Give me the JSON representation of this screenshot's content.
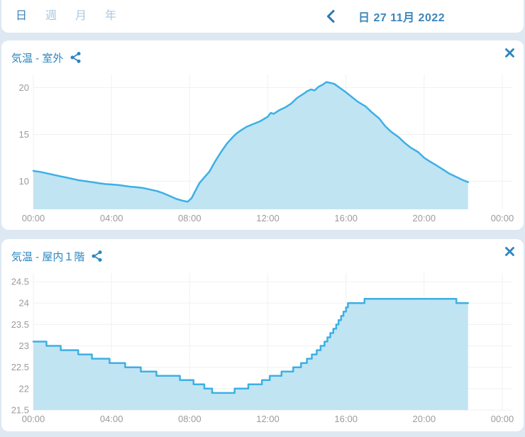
{
  "colors": {
    "page_background": "#dde8f2",
    "card_background": "#ffffff",
    "accent_blue": "#2b86c0",
    "tab_selected": "#3b82b9",
    "tab_unselected": "#a9c8e1",
    "chart_line": "#3cb0e5",
    "chart_fill": "#c1e4f3",
    "gridline": "#f0f0f0",
    "tick_label": "#9b9b9b"
  },
  "topbar": {
    "tabs": [
      {
        "label": "日",
        "selected": true
      },
      {
        "label": "週",
        "selected": false
      },
      {
        "label": "月",
        "selected": false
      },
      {
        "label": "年",
        "selected": false
      }
    ],
    "back_icon": "chevron-left-icon",
    "date_label": "日 27 11月 2022"
  },
  "cards": [
    {
      "title": "気温 - 室外",
      "share_icon": "share-icon",
      "close_icon": "close-icon"
    },
    {
      "title": "気温 - 屋内１階",
      "share_icon": "share-icon",
      "close_icon": "close-icon"
    }
  ],
  "chart_data": [
    {
      "type": "area",
      "title": "気温 - 室外",
      "step": false,
      "x_ticks": [
        "00:00",
        "04:00",
        "08:00",
        "12:00",
        "16:00",
        "20:00",
        "00:00"
      ],
      "y_ticks": [
        10,
        15,
        20
      ],
      "xlim": [
        0,
        24
      ],
      "ylim": [
        7.0,
        21.4
      ],
      "grid": true,
      "line_color": "#3cb0e5",
      "fill_color": "#c1e4f3",
      "points": [
        [
          0,
          11.1
        ],
        [
          0.33,
          11.0
        ],
        [
          0.67,
          10.85
        ],
        [
          1,
          10.7
        ],
        [
          1.33,
          10.55
        ],
        [
          1.67,
          10.4
        ],
        [
          2,
          10.25
        ],
        [
          2.33,
          10.1
        ],
        [
          2.67,
          10.0
        ],
        [
          3,
          9.9
        ],
        [
          3.33,
          9.8
        ],
        [
          3.67,
          9.7
        ],
        [
          4,
          9.65
        ],
        [
          4.33,
          9.6
        ],
        [
          4.67,
          9.5
        ],
        [
          5,
          9.4
        ],
        [
          5.33,
          9.35
        ],
        [
          5.67,
          9.25
        ],
        [
          6,
          9.1
        ],
        [
          6.33,
          8.95
        ],
        [
          6.67,
          8.7
        ],
        [
          7,
          8.4
        ],
        [
          7.33,
          8.1
        ],
        [
          7.67,
          7.9
        ],
        [
          7.9,
          7.8
        ],
        [
          8.1,
          8.2
        ],
        [
          8.3,
          9.0
        ],
        [
          8.5,
          9.8
        ],
        [
          8.75,
          10.4
        ],
        [
          9,
          11.0
        ],
        [
          9.3,
          12.1
        ],
        [
          9.6,
          13.1
        ],
        [
          9.9,
          14.0
        ],
        [
          10.2,
          14.7
        ],
        [
          10.4,
          15.1
        ],
        [
          10.6,
          15.4
        ],
        [
          10.9,
          15.8
        ],
        [
          11.25,
          16.1
        ],
        [
          11.6,
          16.4
        ],
        [
          12,
          16.9
        ],
        [
          12.15,
          17.3
        ],
        [
          12.3,
          17.2
        ],
        [
          12.6,
          17.6
        ],
        [
          12.9,
          17.9
        ],
        [
          13.2,
          18.3
        ],
        [
          13.5,
          18.9
        ],
        [
          13.8,
          19.3
        ],
        [
          14,
          19.6
        ],
        [
          14.2,
          19.8
        ],
        [
          14.4,
          19.7
        ],
        [
          14.6,
          20.1
        ],
        [
          14.8,
          20.3
        ],
        [
          15,
          20.6
        ],
        [
          15.2,
          20.5
        ],
        [
          15.4,
          20.4
        ],
        [
          15.6,
          20.1
        ],
        [
          15.8,
          19.8
        ],
        [
          16,
          19.5
        ],
        [
          16.3,
          19.0
        ],
        [
          16.6,
          18.5
        ],
        [
          17,
          18.0
        ],
        [
          17.3,
          17.4
        ],
        [
          17.7,
          16.7
        ],
        [
          18,
          15.9
        ],
        [
          18.3,
          15.3
        ],
        [
          18.7,
          14.7
        ],
        [
          19,
          14.1
        ],
        [
          19.3,
          13.6
        ],
        [
          19.7,
          13.1
        ],
        [
          20,
          12.5
        ],
        [
          20.3,
          12.1
        ],
        [
          20.7,
          11.6
        ],
        [
          21,
          11.2
        ],
        [
          21.3,
          10.8
        ],
        [
          21.7,
          10.4
        ],
        [
          22,
          10.1
        ],
        [
          22.25,
          9.9
        ]
      ]
    },
    {
      "type": "area",
      "title": "気温 - 屋内１階",
      "step": true,
      "x_ticks": [
        "00:00",
        "04:00",
        "08:00",
        "12:00",
        "16:00",
        "20:00",
        "00:00"
      ],
      "y_ticks": [
        21.5,
        22,
        22.5,
        23,
        23.5,
        24,
        24.5
      ],
      "xlim": [
        0,
        24
      ],
      "ylim": [
        21.5,
        24.7
      ],
      "grid": true,
      "line_color": "#3cb0e5",
      "fill_color": "#c1e4f3",
      "points": [
        [
          0,
          23.1
        ],
        [
          0.67,
          23.0
        ],
        [
          1.4,
          22.9
        ],
        [
          2.3,
          22.8
        ],
        [
          3.0,
          22.7
        ],
        [
          3.9,
          22.6
        ],
        [
          4.7,
          22.5
        ],
        [
          5.5,
          22.4
        ],
        [
          6.3,
          22.3
        ],
        [
          7.5,
          22.2
        ],
        [
          8.2,
          22.1
        ],
        [
          8.75,
          22.0
        ],
        [
          9.15,
          21.9
        ],
        [
          10.3,
          22.0
        ],
        [
          11.0,
          22.1
        ],
        [
          11.7,
          22.2
        ],
        [
          12.1,
          22.3
        ],
        [
          12.7,
          22.4
        ],
        [
          13.3,
          22.5
        ],
        [
          13.7,
          22.6
        ],
        [
          14.0,
          22.7
        ],
        [
          14.25,
          22.8
        ],
        [
          14.5,
          22.9
        ],
        [
          14.7,
          23.0
        ],
        [
          14.9,
          23.1
        ],
        [
          15.05,
          23.2
        ],
        [
          15.2,
          23.3
        ],
        [
          15.35,
          23.4
        ],
        [
          15.5,
          23.5
        ],
        [
          15.62,
          23.6
        ],
        [
          15.75,
          23.7
        ],
        [
          15.87,
          23.8
        ],
        [
          16.0,
          23.9
        ],
        [
          16.1,
          24.0
        ],
        [
          16.95,
          24.1
        ],
        [
          21.65,
          24.0
        ],
        [
          22.25,
          24.0
        ]
      ]
    }
  ]
}
